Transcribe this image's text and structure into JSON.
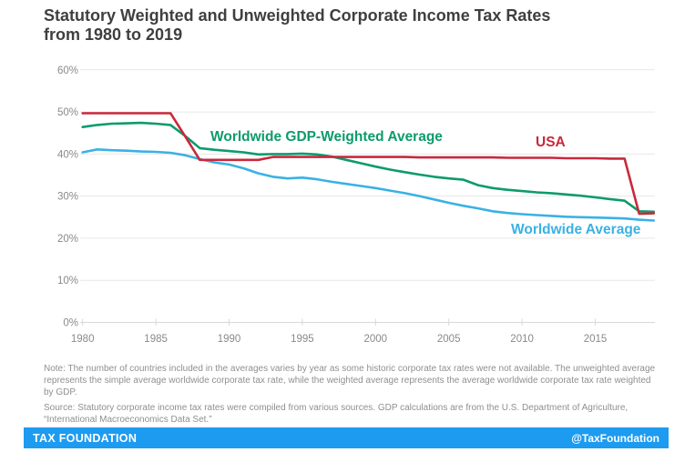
{
  "header": {
    "title_line1": "Statutory Weighted and Unweighted Corporate Income Tax Rates",
    "title_line2": "from 1980 to 2019"
  },
  "chart_data": {
    "type": "line",
    "title": "Statutory Weighted and Unweighted Corporate Income Tax Rates from 1980 to 2019",
    "xlabel": "",
    "ylabel": "",
    "ylim": [
      0,
      60
    ],
    "ytick_step": 10,
    "ytick_suffix": "%",
    "xticks": [
      1980,
      1985,
      1990,
      1995,
      2000,
      2005,
      2010,
      2015
    ],
    "grid": "horizontal",
    "legend_position": "inline-labels",
    "x": [
      1980,
      1981,
      1982,
      1983,
      1984,
      1985,
      1986,
      1987,
      1988,
      1989,
      1990,
      1991,
      1992,
      1993,
      1994,
      1995,
      1996,
      1997,
      1998,
      1999,
      2000,
      2001,
      2002,
      2003,
      2004,
      2005,
      2006,
      2007,
      2008,
      2009,
      2010,
      2011,
      2012,
      2013,
      2014,
      2015,
      2016,
      2017,
      2018,
      2019
    ],
    "series": [
      {
        "id": "gdp-weighted",
        "name": "Worldwide GDP-Weighted Average",
        "color": "#0d9b6c",
        "values": [
          46.4,
          46.9,
          47.2,
          47.3,
          47.4,
          47.2,
          46.9,
          44.3,
          41.4,
          41.0,
          40.7,
          40.4,
          39.9,
          40.0,
          40.0,
          40.1,
          39.9,
          39.4,
          38.6,
          37.8,
          37.0,
          36.3,
          35.7,
          35.1,
          34.6,
          34.2,
          33.9,
          32.6,
          31.9,
          31.5,
          31.2,
          30.9,
          30.7,
          30.4,
          30.1,
          29.7,
          29.3,
          28.9,
          26.4,
          26.3
        ]
      },
      {
        "id": "worldwide-average",
        "name": "Worldwide Average",
        "color": "#3ab1e4",
        "values": [
          40.4,
          41.1,
          40.9,
          40.8,
          40.6,
          40.5,
          40.3,
          39.7,
          38.8,
          38.0,
          37.5,
          36.6,
          35.4,
          34.6,
          34.2,
          34.4,
          34.0,
          33.4,
          32.9,
          32.4,
          31.9,
          31.3,
          30.7,
          30.0,
          29.2,
          28.4,
          27.7,
          27.1,
          26.4,
          26.0,
          25.7,
          25.5,
          25.3,
          25.1,
          25.0,
          24.9,
          24.8,
          24.7,
          24.4,
          24.2
        ]
      },
      {
        "id": "usa",
        "name": "USA",
        "color": "#c8293c",
        "values": [
          49.7,
          49.7,
          49.7,
          49.7,
          49.7,
          49.7,
          49.7,
          44.2,
          38.6,
          38.6,
          38.6,
          38.6,
          38.6,
          39.3,
          39.3,
          39.3,
          39.3,
          39.3,
          39.3,
          39.3,
          39.3,
          39.3,
          39.3,
          39.2,
          39.2,
          39.2,
          39.2,
          39.2,
          39.2,
          39.1,
          39.1,
          39.1,
          39.1,
          39.0,
          39.0,
          39.0,
          38.9,
          38.9,
          25.8,
          25.9
        ]
      }
    ]
  },
  "notes": {
    "note": "Note: The number of countries included in the averages varies by year as some historic corporate tax rates were not available. The unweighted average represents the simple average worldwide corporate tax rate, while the weighted average represents the average worldwide corporate tax rate weighted by GDP.",
    "source": "Source: Statutory corporate income tax rates were compiled from various sources. GDP calculations are from the U.S. Department of Agriculture, “International Macroeconomics Data Set.”"
  },
  "footer": {
    "brand": "TAX FOUNDATION",
    "handle": "@TaxFoundation",
    "bar_color": "#1d9bf0"
  },
  "style": {
    "gridline_color": "#e7e7e7",
    "axis_color": "#d8d8d8",
    "axis_text_color": "#8a8a8a"
  }
}
